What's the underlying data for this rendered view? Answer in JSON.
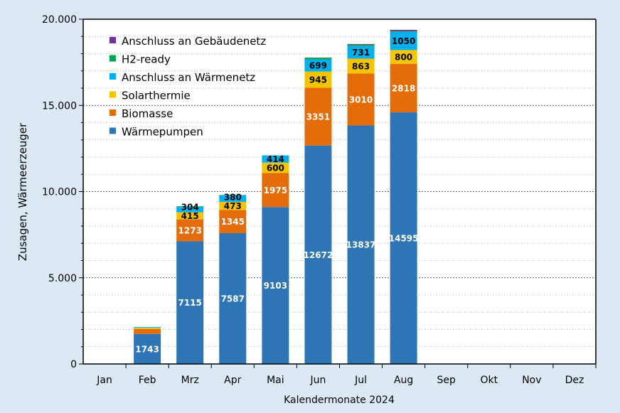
{
  "chart_data": {
    "type": "bar",
    "stacked": true,
    "xlabel": "Kalendermonate 2024",
    "ylabel": "Zusagen, Wärmeerzeuger",
    "ylim": [
      0,
      20000
    ],
    "yticks": [
      "0",
      "5.000",
      "10.000",
      "15.000",
      "20.000"
    ],
    "ytick_values": [
      0,
      5000,
      10000,
      15000,
      20000
    ],
    "grid": true,
    "legend_position": "top-left",
    "categories": [
      "Jan",
      "Feb",
      "Mrz",
      "Apr",
      "Mai",
      "Jun",
      "Jul",
      "Aug",
      "Sep",
      "Okt",
      "Nov",
      "Dez"
    ],
    "series": [
      {
        "name": "Wärmepumpen",
        "color": "#2e75b6",
        "label_color": "#ffffff",
        "values": [
          0,
          1743,
          7115,
          7587,
          9103,
          12672,
          13837,
          14595,
          0,
          0,
          0,
          0
        ],
        "labels": [
          "",
          "1743",
          "7115",
          "7587",
          "9103",
          "12672",
          "13837",
          "14595",
          "",
          "",
          "",
          ""
        ]
      },
      {
        "name": "Biomasse",
        "color": "#e46c0a",
        "label_color": "#ffffff",
        "values": [
          0,
          290,
          1273,
          1345,
          1975,
          3351,
          3010,
          2818,
          0,
          0,
          0,
          0
        ],
        "labels": [
          "",
          "",
          "1273",
          "1345",
          "1975",
          "3351",
          "3010",
          "2818",
          "",
          "",
          "",
          ""
        ]
      },
      {
        "name": "Solarthermie",
        "color": "#f5c400",
        "label_color": "#000000",
        "values": [
          0,
          60,
          415,
          473,
          600,
          945,
          863,
          800,
          0,
          0,
          0,
          0
        ],
        "labels": [
          "",
          "",
          "415",
          "473",
          "600",
          "945",
          "863",
          "800",
          "",
          "",
          "",
          ""
        ]
      },
      {
        "name": "Anschluss an Wärmenetz",
        "color": "#00b0f0",
        "label_color": "#000000",
        "values": [
          0,
          40,
          304,
          380,
          414,
          699,
          731,
          1050,
          0,
          0,
          0,
          0
        ],
        "labels": [
          "",
          "",
          "304",
          "380",
          "414",
          "699",
          "731",
          "1050",
          "",
          "",
          "",
          ""
        ]
      },
      {
        "name": "H2-ready",
        "color": "#00a650",
        "label_color": "#000000",
        "values": [
          0,
          10,
          40,
          20,
          10,
          100,
          80,
          50,
          0,
          0,
          0,
          0
        ],
        "labels": [
          "",
          "",
          "",
          "",
          "",
          "",
          "",
          "",
          "",
          "",
          "",
          ""
        ]
      },
      {
        "name": "Anschluss an Gebäudenetz",
        "color": "#7030a0",
        "label_color": "#000000",
        "values": [
          0,
          0,
          0,
          0,
          0,
          10,
          40,
          70,
          0,
          0,
          0,
          0
        ],
        "labels": [
          "",
          "",
          "",
          "",
          "",
          "",
          "",
          "",
          "",
          "",
          "",
          ""
        ]
      }
    ]
  }
}
